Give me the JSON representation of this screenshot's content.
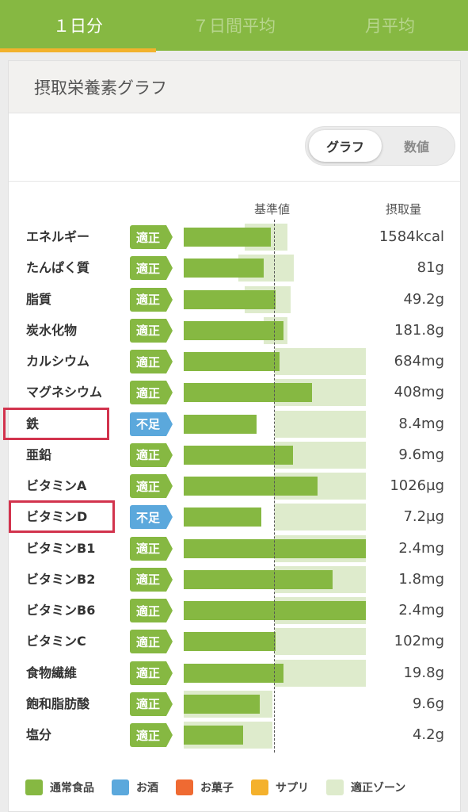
{
  "tabs": [
    {
      "label": "１日分",
      "active": true
    },
    {
      "label": "７日間平均",
      "active": false
    },
    {
      "label": "月平均",
      "active": false
    }
  ],
  "card": {
    "title": "摂取栄養素グラフ",
    "toggle": {
      "graph_label": "グラフ",
      "number_label": "数値",
      "selected": "グラフ"
    },
    "col_reference": "基準値",
    "col_intake": "摂取量"
  },
  "status_colors": {
    "適正": "#86b842",
    "不足": "#5ba8dc"
  },
  "nutrients": [
    {
      "name": "エネルギー",
      "status": "適正",
      "value": "1584kcal"
    },
    {
      "name": "たんぱく質",
      "status": "適正",
      "value": "81g"
    },
    {
      "name": "脂質",
      "status": "適正",
      "value": "49.2g"
    },
    {
      "name": "炭水化物",
      "status": "適正",
      "value": "181.8g"
    },
    {
      "name": "カルシウム",
      "status": "適正",
      "value": "684mg"
    },
    {
      "name": "マグネシウム",
      "status": "適正",
      "value": "408mg"
    },
    {
      "name": "鉄",
      "status": "不足",
      "value": "8.4mg",
      "highlighted": true
    },
    {
      "name": "亜鉛",
      "status": "適正",
      "value": "9.6mg"
    },
    {
      "name": "ビタミンA",
      "status": "適正",
      "value": "1026µg"
    },
    {
      "name": "ビタミンD",
      "status": "不足",
      "value": "7.2µg",
      "highlighted": true
    },
    {
      "name": "ビタミンB1",
      "status": "適正",
      "value": "2.4mg"
    },
    {
      "name": "ビタミンB2",
      "status": "適正",
      "value": "1.8mg"
    },
    {
      "name": "ビタミンB6",
      "status": "適正",
      "value": "2.4mg"
    },
    {
      "name": "ビタミンC",
      "status": "適正",
      "value": "102mg"
    },
    {
      "name": "食物繊維",
      "status": "適正",
      "value": "19.8g"
    },
    {
      "name": "飽和脂肪酸",
      "status": "適正",
      "value": "9.6g"
    },
    {
      "name": "塩分",
      "status": "適正",
      "value": "4.2g"
    }
  ],
  "legend": [
    {
      "label": "通常食品",
      "color": "#86b842"
    },
    {
      "label": "お酒",
      "color": "#5ba8dc"
    },
    {
      "label": "お菓子",
      "color": "#ef6a32"
    },
    {
      "label": "サプリ",
      "color": "#f4b12c"
    },
    {
      "label": "適正ゾーン",
      "color": "#deebcc"
    }
  ]
}
